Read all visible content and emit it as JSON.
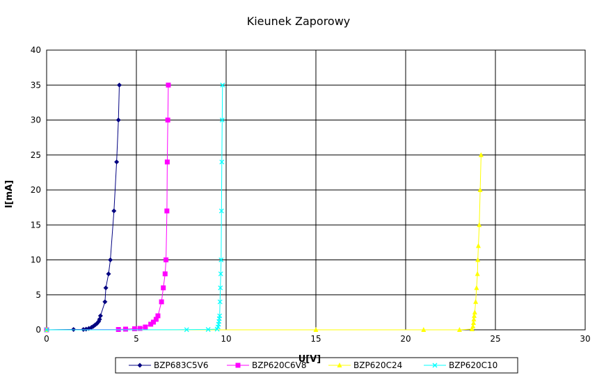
{
  "chart_data": {
    "type": "line",
    "title": "Kieunek Zaporowy",
    "xlabel": "U[V]",
    "ylabel": "I[mA]",
    "xlim": [
      0,
      30
    ],
    "ylim": [
      0,
      40
    ],
    "xticks": [
      "0",
      "5",
      "10",
      "15",
      "20",
      "25",
      "30"
    ],
    "yticks": [
      "0",
      "5",
      "10",
      "15",
      "20",
      "25",
      "30",
      "35",
      "40"
    ],
    "grid": true,
    "legend_position": "bottom",
    "series": [
      {
        "name": "BZP683C5V6",
        "color": "#000080",
        "marker": "diamond",
        "points": [
          [
            0,
            0
          ],
          [
            1.5,
            0.05
          ],
          [
            2.05,
            0.05
          ],
          [
            2.2,
            0.1
          ],
          [
            2.35,
            0.2
          ],
          [
            2.5,
            0.35
          ],
          [
            2.6,
            0.5
          ],
          [
            2.7,
            0.7
          ],
          [
            2.8,
            0.9
          ],
          [
            2.9,
            1.2
          ],
          [
            2.95,
            1.5
          ],
          [
            3.0,
            2
          ],
          [
            3.25,
            4
          ],
          [
            3.3,
            6
          ],
          [
            3.45,
            8
          ],
          [
            3.55,
            10
          ],
          [
            3.75,
            17
          ],
          [
            3.9,
            24
          ],
          [
            4.0,
            30
          ],
          [
            4.05,
            35
          ]
        ]
      },
      {
        "name": "BZP620C6V8",
        "color": "#ff00ff",
        "marker": "square",
        "points": [
          [
            0,
            0
          ],
          [
            4.0,
            0.05
          ],
          [
            4.4,
            0.1
          ],
          [
            4.9,
            0.15
          ],
          [
            5.2,
            0.2
          ],
          [
            5.5,
            0.4
          ],
          [
            5.8,
            0.8
          ],
          [
            5.95,
            1.1
          ],
          [
            6.1,
            1.5
          ],
          [
            6.2,
            2
          ],
          [
            6.4,
            4
          ],
          [
            6.5,
            6
          ],
          [
            6.6,
            8
          ],
          [
            6.65,
            10
          ],
          [
            6.7,
            17
          ],
          [
            6.72,
            24
          ],
          [
            6.75,
            30
          ],
          [
            6.78,
            35
          ]
        ]
      },
      {
        "name": "BZP620C24",
        "color": "#ffff00",
        "marker": "triangle",
        "points": [
          [
            0,
            0
          ],
          [
            15.0,
            0
          ],
          [
            21.0,
            0
          ],
          [
            23.0,
            0
          ],
          [
            23.7,
            0.1
          ],
          [
            23.75,
            0.5
          ],
          [
            23.78,
            1
          ],
          [
            23.8,
            1.5
          ],
          [
            23.82,
            2
          ],
          [
            23.85,
            2.5
          ],
          [
            23.9,
            4
          ],
          [
            23.95,
            6
          ],
          [
            24.0,
            8
          ],
          [
            24.02,
            10
          ],
          [
            24.05,
            12
          ],
          [
            24.1,
            15
          ],
          [
            24.15,
            20
          ],
          [
            24.2,
            25
          ]
        ]
      },
      {
        "name": "BZP620C10",
        "color": "#00ffff",
        "marker": "x",
        "points": [
          [
            0,
            0
          ],
          [
            7.8,
            0.02
          ],
          [
            9.0,
            0.05
          ],
          [
            9.5,
            0.1
          ],
          [
            9.55,
            0.4
          ],
          [
            9.58,
            0.8
          ],
          [
            9.6,
            1.2
          ],
          [
            9.62,
            1.6
          ],
          [
            9.64,
            2
          ],
          [
            9.66,
            4
          ],
          [
            9.68,
            6
          ],
          [
            9.7,
            8
          ],
          [
            9.72,
            10
          ],
          [
            9.74,
            17
          ],
          [
            9.76,
            24
          ],
          [
            9.78,
            30
          ],
          [
            9.8,
            35
          ]
        ]
      }
    ]
  }
}
